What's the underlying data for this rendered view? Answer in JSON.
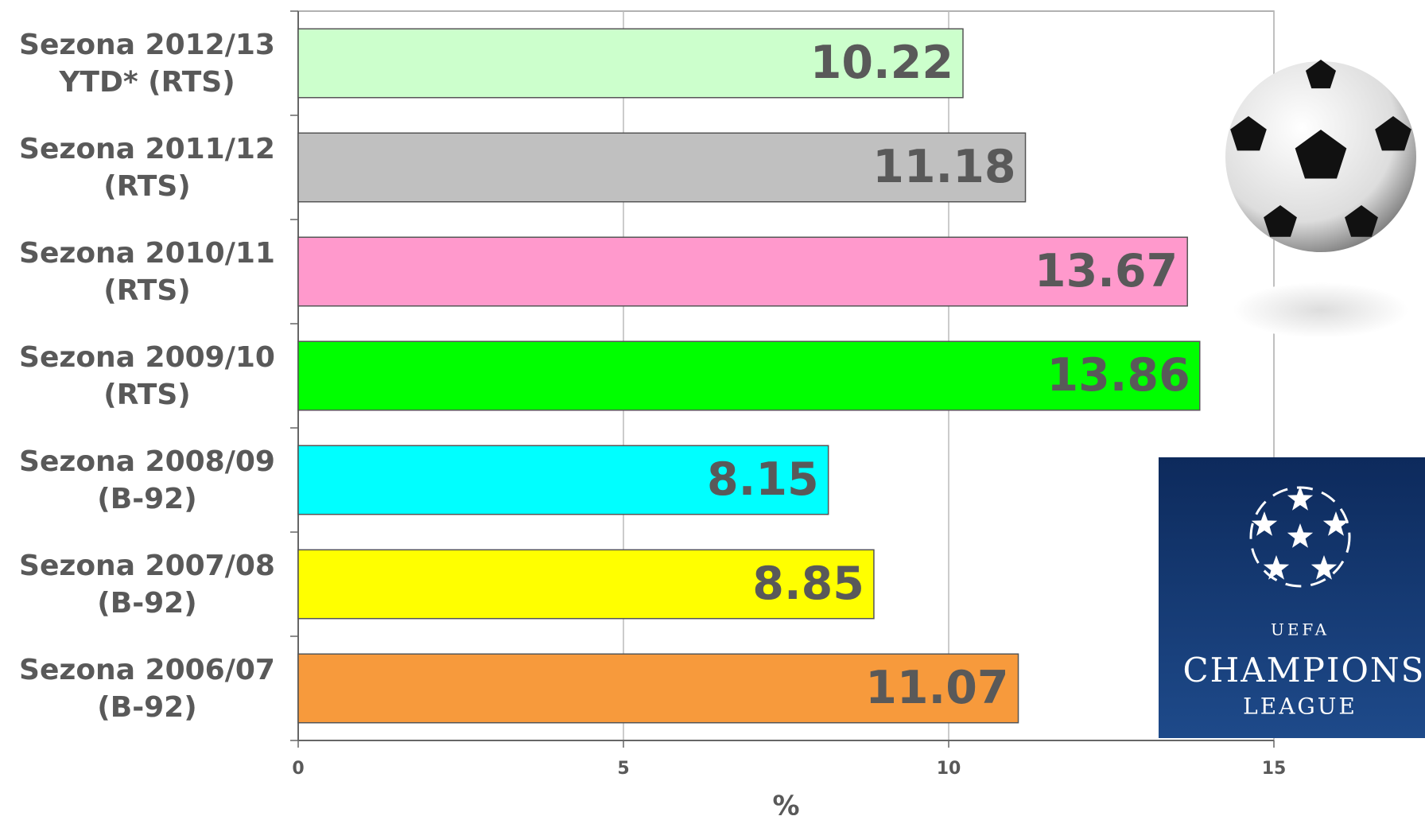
{
  "chart_data": {
    "type": "bar",
    "orientation": "horizontal",
    "categories": [
      "Sezona 2012/13\nYTD* (RTS)",
      "Sezona 2011/12\n(RTS)",
      "Sezona 2010/11\n(RTS)",
      "Sezona 2009/10\n(RTS)",
      "Sezona 2008/09\n(B-92)",
      "Sezona 2007/08\n(B-92)",
      "Sezona 2006/07\n(B-92)"
    ],
    "values": [
      10.22,
      11.18,
      13.67,
      13.86,
      8.15,
      8.85,
      11.07
    ],
    "colors": [
      "#ccffcc",
      "#c0c0c0",
      "#ff99cc",
      "#00ff00",
      "#00ffff",
      "#ffff00",
      "#f79a3c"
    ],
    "xlim": [
      0,
      15
    ],
    "xticks": [
      0,
      5,
      10,
      15
    ],
    "grid": true,
    "xlabel": "%"
  },
  "logo": {
    "top": "UEFA",
    "name": "CHAMPIONS",
    "sub": "LEAGUE"
  }
}
